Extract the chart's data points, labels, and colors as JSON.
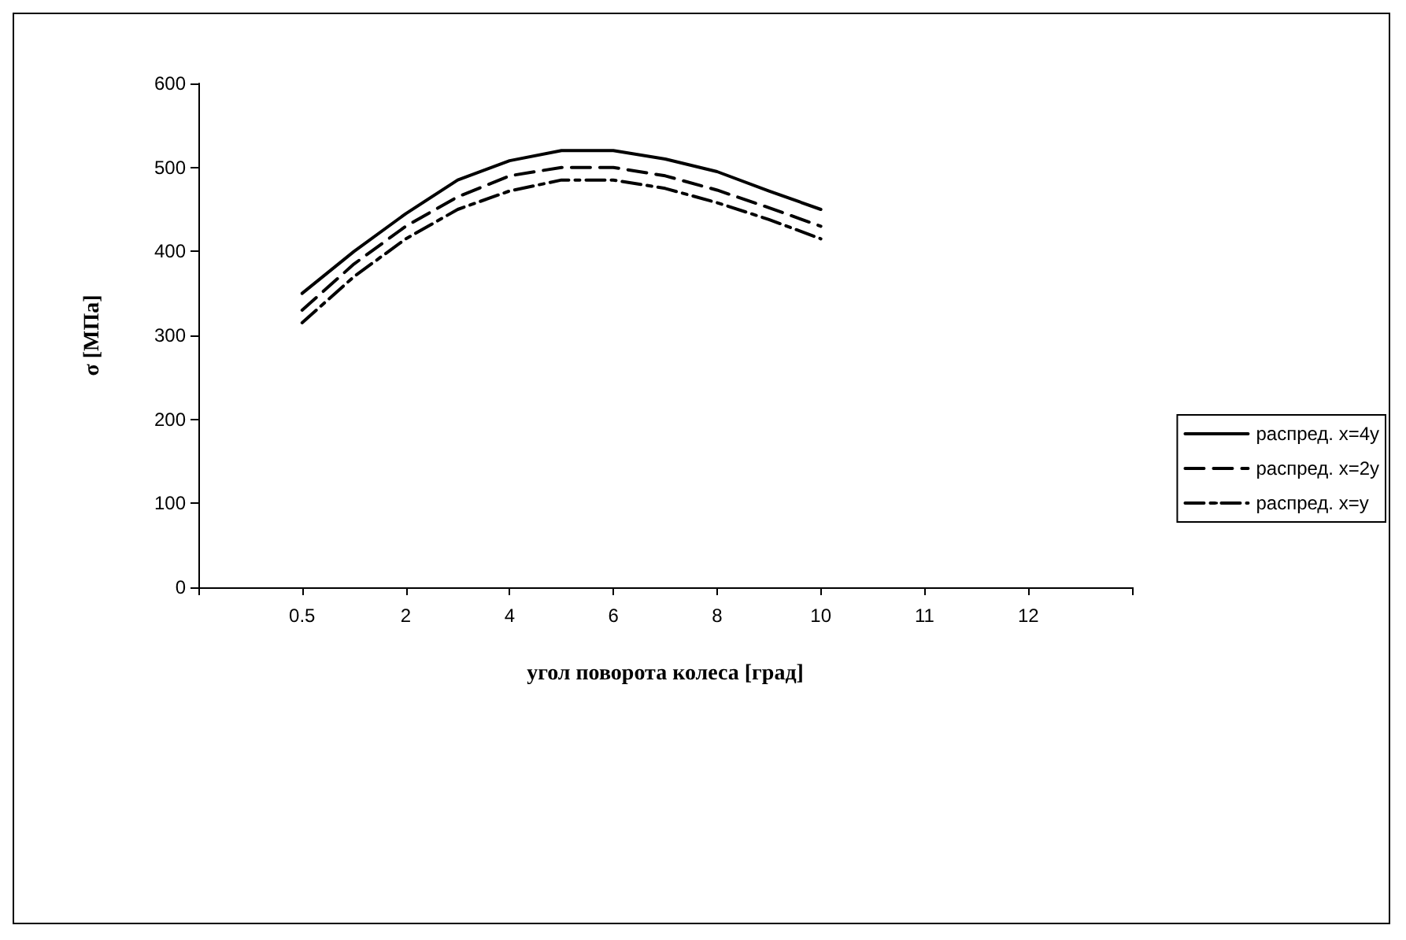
{
  "chart_data": {
    "type": "line",
    "xlabel": "угол поворота колеса [град]",
    "ylabel": "σ [МПа]",
    "categories": [
      null,
      null,
      "0.5",
      null,
      "2",
      null,
      "4",
      null,
      "6",
      null,
      "8",
      null,
      "10",
      null,
      "11",
      null,
      "12",
      null,
      null
    ],
    "ylim": [
      0,
      600
    ],
    "yticks": [
      0,
      100,
      200,
      300,
      400,
      500,
      600
    ],
    "grid": false,
    "legend": "right",
    "marker": "none",
    "series": [
      {
        "name": "распред. x=4y",
        "color": "#000000",
        "line_style": "solid",
        "values": [
          null,
          null,
          350,
          400,
          445,
          485,
          508,
          520,
          520,
          510,
          495,
          472,
          450,
          null,
          null,
          null,
          null,
          null,
          null
        ]
      },
      {
        "name": "распред. x=2y",
        "color": "#000000",
        "line_style": "dashed",
        "values": [
          null,
          null,
          330,
          385,
          430,
          465,
          490,
          500,
          500,
          490,
          473,
          452,
          430,
          null,
          null,
          null,
          null,
          null,
          null
        ]
      },
      {
        "name": "распред. x=y",
        "color": "#000000",
        "line_style": "dashdot",
        "values": [
          null,
          null,
          315,
          370,
          415,
          450,
          472,
          485,
          485,
          475,
          458,
          438,
          415,
          null,
          null,
          null,
          null,
          null,
          null
        ]
      }
    ]
  }
}
